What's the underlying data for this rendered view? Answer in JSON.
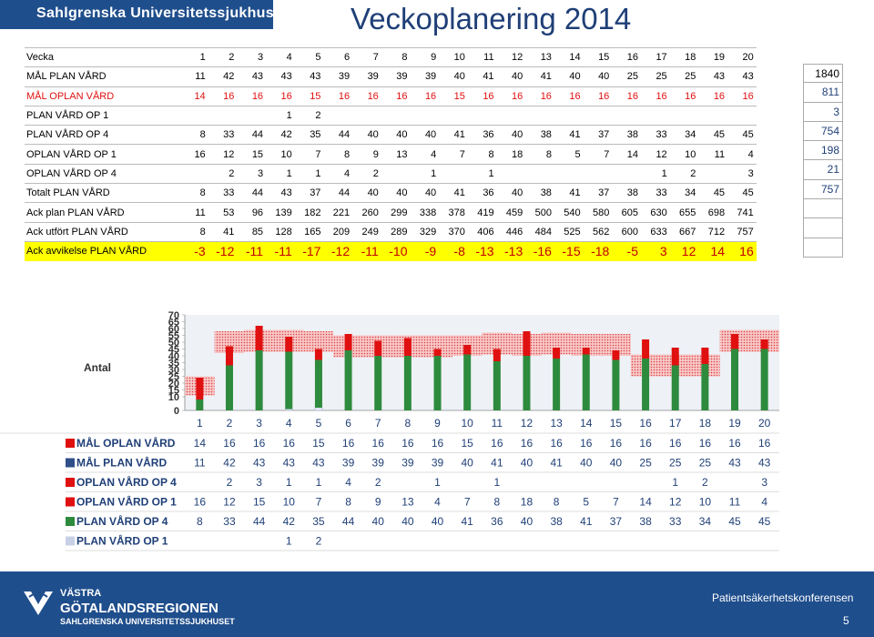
{
  "header": {
    "org": "Sahlgrenska Universitetssjukhuset",
    "title": "Veckoplanering 2014"
  },
  "table": {
    "weeks_label": "Vecka",
    "weeks": [
      "1",
      "2",
      "3",
      "4",
      "5",
      "6",
      "7",
      "8",
      "9",
      "10",
      "11",
      "12",
      "13",
      "14",
      "15",
      "16",
      "17",
      "18",
      "19",
      "20"
    ],
    "rows": [
      {
        "label": "MÅL PLAN VÅRD",
        "style": "normal",
        "values": [
          "11",
          "42",
          "43",
          "43",
          "43",
          "39",
          "39",
          "39",
          "39",
          "40",
          "41",
          "40",
          "41",
          "40",
          "40",
          "25",
          "25",
          "25",
          "43",
          "43"
        ]
      },
      {
        "label": "MÅL OPLAN VÅRD",
        "style": "red",
        "values": [
          "14",
          "16",
          "16",
          "16",
          "15",
          "16",
          "16",
          "16",
          "16",
          "15",
          "16",
          "16",
          "16",
          "16",
          "16",
          "16",
          "16",
          "16",
          "16",
          "16"
        ]
      },
      {
        "label": "PLAN VÅRD OP 1",
        "style": "normal",
        "values": [
          "",
          "",
          "",
          "1",
          "2",
          "",
          "",
          "",
          "",
          "",
          "",
          "",
          "",
          "",
          "",
          "",
          "",
          "",
          "",
          ""
        ]
      },
      {
        "label": "PLAN VÅRD OP 4",
        "style": "normal",
        "values": [
          "8",
          "33",
          "44",
          "42",
          "35",
          "44",
          "40",
          "40",
          "40",
          "41",
          "36",
          "40",
          "38",
          "41",
          "37",
          "38",
          "33",
          "34",
          "45",
          "45"
        ]
      },
      {
        "label": "OPLAN VÅRD OP 1",
        "style": "normal",
        "values": [
          "16",
          "12",
          "15",
          "10",
          "7",
          "8",
          "9",
          "13",
          "4",
          "7",
          "8",
          "18",
          "8",
          "5",
          "7",
          "14",
          "12",
          "10",
          "11",
          "4"
        ]
      },
      {
        "label": "OPLAN VÅRD OP 4",
        "style": "normal",
        "values": [
          "",
          "2",
          "3",
          "1",
          "1",
          "4",
          "2",
          "",
          "1",
          "",
          "1",
          "",
          "",
          "",
          "",
          "",
          "1",
          "2",
          "",
          "3"
        ]
      },
      {
        "label": "Totalt PLAN VÅRD",
        "style": "normal",
        "values": [
          "8",
          "33",
          "44",
          "43",
          "37",
          "44",
          "40",
          "40",
          "40",
          "41",
          "36",
          "40",
          "38",
          "41",
          "37",
          "38",
          "33",
          "34",
          "45",
          "45"
        ]
      },
      {
        "label": "Ack plan PLAN VÅRD",
        "style": "normal",
        "values": [
          "11",
          "53",
          "96",
          "139",
          "182",
          "221",
          "260",
          "299",
          "338",
          "378",
          "419",
          "459",
          "500",
          "540",
          "580",
          "605",
          "630",
          "655",
          "698",
          "741"
        ]
      },
      {
        "label": "Ack utfört PLAN VÅRD",
        "style": "normal",
        "values": [
          "8",
          "41",
          "85",
          "128",
          "165",
          "209",
          "249",
          "289",
          "329",
          "370",
          "406",
          "446",
          "484",
          "525",
          "562",
          "600",
          "633",
          "667",
          "712",
          "757"
        ]
      },
      {
        "label": "Ack avvikelse PLAN VÅRD",
        "style": "big",
        "values": [
          "-3",
          "-12",
          "-11",
          "-11",
          "-17",
          "-12",
          "-11",
          "-10",
          "-9",
          "-8",
          "-13",
          "-13",
          "-16",
          "-15",
          "-18",
          "-5",
          "3",
          "12",
          "14",
          "16"
        ]
      }
    ],
    "side_totals": [
      "1840",
      "811",
      "3",
      "754",
      "198",
      "21",
      "757",
      "",
      "",
      ""
    ]
  },
  "chart_data": {
    "type": "bar",
    "ylabel": "Antal",
    "ylim": [
      0,
      70
    ],
    "yticks": [
      0,
      10,
      15,
      20,
      25,
      30,
      35,
      40,
      45,
      50,
      55,
      60,
      65,
      70
    ],
    "categories": [
      "1",
      "2",
      "3",
      "4",
      "5",
      "6",
      "7",
      "8",
      "9",
      "10",
      "11",
      "12",
      "13",
      "14",
      "15",
      "16",
      "17",
      "18",
      "19",
      "20"
    ],
    "target_line": [
      11,
      42,
      43,
      43,
      43,
      39,
      39,
      39,
      39,
      40,
      41,
      40,
      41,
      40,
      40,
      25,
      25,
      25,
      43,
      43
    ],
    "target_band": [
      14,
      16,
      16,
      16,
      15,
      16,
      16,
      16,
      16,
      15,
      16,
      16,
      16,
      16,
      16,
      16,
      16,
      16,
      16,
      16
    ],
    "series": [
      {
        "name": "PLAN VÅRD OP 1",
        "color": "#e8eef8",
        "values": [
          0,
          0,
          0,
          1,
          2,
          0,
          0,
          0,
          0,
          0,
          0,
          0,
          0,
          0,
          0,
          0,
          0,
          0,
          0,
          0
        ]
      },
      {
        "name": "PLAN VÅRD OP 4",
        "color": "#2e8b3d",
        "values": [
          8,
          33,
          44,
          42,
          35,
          44,
          40,
          40,
          40,
          41,
          36,
          40,
          38,
          41,
          37,
          38,
          33,
          34,
          45,
          45
        ]
      },
      {
        "name": "OPLAN VÅRD OP 1",
        "color": "#e01010",
        "values": [
          16,
          12,
          15,
          10,
          7,
          8,
          9,
          13,
          4,
          7,
          8,
          18,
          8,
          5,
          7,
          14,
          12,
          10,
          11,
          4
        ]
      },
      {
        "name": "OPLAN VÅRD OP 4",
        "color": "#e01010",
        "values": [
          0,
          2,
          3,
          1,
          1,
          4,
          2,
          0,
          1,
          0,
          1,
          0,
          0,
          0,
          0,
          0,
          1,
          2,
          0,
          3
        ]
      }
    ],
    "legend_rows": [
      {
        "label": "MÅL OPLAN VÅRD",
        "values": [
          "14",
          "16",
          "16",
          "16",
          "15",
          "16",
          "16",
          "16",
          "16",
          "15",
          "16",
          "16",
          "16",
          "16",
          "16",
          "16",
          "16",
          "16",
          "16",
          "16"
        ]
      },
      {
        "label": "MÅL PLAN VÅRD",
        "values": [
          "11",
          "42",
          "43",
          "43",
          "43",
          "39",
          "39",
          "39",
          "39",
          "40",
          "41",
          "40",
          "41",
          "40",
          "40",
          "25",
          "25",
          "25",
          "43",
          "43"
        ]
      },
      {
        "label": "OPLAN VÅRD OP 4",
        "values": [
          "",
          "2",
          "3",
          "1",
          "1",
          "4",
          "2",
          "",
          "1",
          "",
          "1",
          "",
          "",
          "",
          "",
          "",
          "1",
          "2",
          "",
          "3"
        ]
      },
      {
        "label": "OPLAN VÅRD OP 1",
        "values": [
          "16",
          "12",
          "15",
          "10",
          "7",
          "8",
          "9",
          "13",
          "4",
          "7",
          "8",
          "18",
          "8",
          "5",
          "7",
          "14",
          "12",
          "10",
          "11",
          "4"
        ]
      },
      {
        "label": "PLAN VÅRD OP 4",
        "values": [
          "8",
          "33",
          "44",
          "42",
          "35",
          "44",
          "40",
          "40",
          "40",
          "41",
          "36",
          "40",
          "38",
          "41",
          "37",
          "38",
          "33",
          "34",
          "45",
          "45"
        ]
      },
      {
        "label": "PLAN VÅRD OP 1",
        "values": [
          "",
          "",
          "",
          "1",
          "2",
          "",
          "",
          "",
          "",
          "",
          "",
          "",
          "",
          "",
          "",
          "",
          "",
          "",
          "",
          ""
        ]
      }
    ]
  },
  "footer": {
    "org_line1": "VÄSTRA",
    "org_line2": "GÖTALANDSREGIONEN",
    "org_line3": "SAHLGRENSKA UNIVERSITETSSJUKHUSET",
    "conference": "Patientsäkerhetskonferensen",
    "page": "5"
  }
}
